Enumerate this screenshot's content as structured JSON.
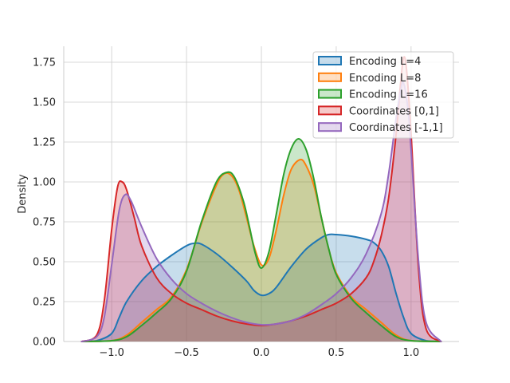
{
  "chart_data": {
    "type": "area",
    "title": "",
    "xlabel": "",
    "ylabel": "Density",
    "xlim": [
      -1.32,
      1.32
    ],
    "ylim": [
      0,
      1.85
    ],
    "grid": true,
    "legend_position": "top-right",
    "x_ticks": [
      -1.0,
      -0.5,
      0.0,
      0.5,
      1.0
    ],
    "x_tick_labels": [
      "−1.0",
      "−0.5",
      "0.0",
      "0.5",
      "1.0"
    ],
    "y_ticks": [
      0,
      0.25,
      0.5,
      0.75,
      1.0,
      1.25,
      1.5,
      1.75
    ],
    "y_tick_labels": [
      "0.00",
      "0.25",
      "0.50",
      "0.75",
      "1.00",
      "1.25",
      "1.50",
      "1.75"
    ],
    "series": [
      {
        "name": "Encoding L=4",
        "color": "#1f77b4",
        "points": [
          [
            -1.2,
            0.0
          ],
          [
            -1.1,
            0.005
          ],
          [
            -1.0,
            0.05
          ],
          [
            -0.95,
            0.15
          ],
          [
            -0.9,
            0.25
          ],
          [
            -0.8,
            0.38
          ],
          [
            -0.7,
            0.47
          ],
          [
            -0.6,
            0.54
          ],
          [
            -0.5,
            0.6
          ],
          [
            -0.45,
            0.615
          ],
          [
            -0.4,
            0.61
          ],
          [
            -0.3,
            0.55
          ],
          [
            -0.2,
            0.47
          ],
          [
            -0.1,
            0.38
          ],
          [
            -0.05,
            0.32
          ],
          [
            0.0,
            0.29
          ],
          [
            0.05,
            0.3
          ],
          [
            0.1,
            0.34
          ],
          [
            0.2,
            0.47
          ],
          [
            0.3,
            0.58
          ],
          [
            0.4,
            0.65
          ],
          [
            0.45,
            0.67
          ],
          [
            0.5,
            0.67
          ],
          [
            0.6,
            0.66
          ],
          [
            0.7,
            0.64
          ],
          [
            0.75,
            0.62
          ],
          [
            0.8,
            0.57
          ],
          [
            0.85,
            0.47
          ],
          [
            0.9,
            0.3
          ],
          [
            0.95,
            0.15
          ],
          [
            1.0,
            0.05
          ],
          [
            1.1,
            0.005
          ],
          [
            1.2,
            0.0
          ]
        ]
      },
      {
        "name": "Encoding L=8",
        "color": "#ff7f0e",
        "points": [
          [
            -1.2,
            0.0
          ],
          [
            -1.0,
            0.005
          ],
          [
            -0.9,
            0.04
          ],
          [
            -0.8,
            0.12
          ],
          [
            -0.7,
            0.2
          ],
          [
            -0.6,
            0.28
          ],
          [
            -0.5,
            0.45
          ],
          [
            -0.4,
            0.74
          ],
          [
            -0.3,
            0.98
          ],
          [
            -0.25,
            1.05
          ],
          [
            -0.2,
            1.04
          ],
          [
            -0.15,
            0.95
          ],
          [
            -0.1,
            0.78
          ],
          [
            -0.05,
            0.6
          ],
          [
            0.0,
            0.48
          ],
          [
            0.05,
            0.52
          ],
          [
            0.1,
            0.7
          ],
          [
            0.15,
            0.92
          ],
          [
            0.2,
            1.08
          ],
          [
            0.26,
            1.14
          ],
          [
            0.3,
            1.1
          ],
          [
            0.35,
            0.98
          ],
          [
            0.4,
            0.78
          ],
          [
            0.45,
            0.58
          ],
          [
            0.5,
            0.43
          ],
          [
            0.6,
            0.28
          ],
          [
            0.7,
            0.2
          ],
          [
            0.8,
            0.12
          ],
          [
            0.9,
            0.04
          ],
          [
            1.0,
            0.005
          ],
          [
            1.2,
            0.0
          ]
        ]
      },
      {
        "name": "Encoding L=16",
        "color": "#2ca02c",
        "points": [
          [
            -1.2,
            0.0
          ],
          [
            -1.0,
            0.005
          ],
          [
            -0.9,
            0.03
          ],
          [
            -0.8,
            0.1
          ],
          [
            -0.7,
            0.18
          ],
          [
            -0.6,
            0.27
          ],
          [
            -0.5,
            0.44
          ],
          [
            -0.4,
            0.75
          ],
          [
            -0.3,
            1.0
          ],
          [
            -0.23,
            1.06
          ],
          [
            -0.18,
            1.03
          ],
          [
            -0.12,
            0.88
          ],
          [
            -0.08,
            0.72
          ],
          [
            -0.04,
            0.55
          ],
          [
            0.0,
            0.46
          ],
          [
            0.05,
            0.56
          ],
          [
            0.1,
            0.8
          ],
          [
            0.15,
            1.05
          ],
          [
            0.2,
            1.21
          ],
          [
            0.25,
            1.27
          ],
          [
            0.3,
            1.2
          ],
          [
            0.35,
            1.02
          ],
          [
            0.4,
            0.78
          ],
          [
            0.45,
            0.58
          ],
          [
            0.5,
            0.42
          ],
          [
            0.6,
            0.27
          ],
          [
            0.7,
            0.18
          ],
          [
            0.8,
            0.1
          ],
          [
            0.9,
            0.03
          ],
          [
            1.0,
            0.005
          ],
          [
            1.2,
            0.0
          ]
        ]
      },
      {
        "name": "Coordinates [0,1]",
        "color": "#d62728",
        "points": [
          [
            -1.2,
            0.0
          ],
          [
            -1.1,
            0.04
          ],
          [
            -1.05,
            0.25
          ],
          [
            -1.0,
            0.7
          ],
          [
            -0.96,
            0.97
          ],
          [
            -0.93,
            1.0
          ],
          [
            -0.9,
            0.95
          ],
          [
            -0.85,
            0.78
          ],
          [
            -0.8,
            0.6
          ],
          [
            -0.7,
            0.4
          ],
          [
            -0.6,
            0.3
          ],
          [
            -0.5,
            0.24
          ],
          [
            -0.4,
            0.2
          ],
          [
            -0.3,
            0.16
          ],
          [
            -0.2,
            0.13
          ],
          [
            -0.1,
            0.11
          ],
          [
            0.0,
            0.1
          ],
          [
            0.1,
            0.11
          ],
          [
            0.2,
            0.13
          ],
          [
            0.3,
            0.16
          ],
          [
            0.4,
            0.2
          ],
          [
            0.5,
            0.24
          ],
          [
            0.6,
            0.3
          ],
          [
            0.7,
            0.4
          ],
          [
            0.75,
            0.5
          ],
          [
            0.8,
            0.66
          ],
          [
            0.85,
            0.9
          ],
          [
            0.9,
            1.3
          ],
          [
            0.93,
            1.62
          ],
          [
            0.95,
            1.78
          ],
          [
            0.97,
            1.7
          ],
          [
            1.0,
            1.3
          ],
          [
            1.05,
            0.45
          ],
          [
            1.1,
            0.08
          ],
          [
            1.2,
            0.0
          ]
        ]
      },
      {
        "name": "Coordinates [-1,1]",
        "color": "#9467bd",
        "points": [
          [
            -1.2,
            0.0
          ],
          [
            -1.1,
            0.03
          ],
          [
            -1.05,
            0.15
          ],
          [
            -1.0,
            0.48
          ],
          [
            -0.95,
            0.82
          ],
          [
            -0.91,
            0.92
          ],
          [
            -0.87,
            0.88
          ],
          [
            -0.8,
            0.72
          ],
          [
            -0.7,
            0.52
          ],
          [
            -0.6,
            0.39
          ],
          [
            -0.5,
            0.3
          ],
          [
            -0.4,
            0.24
          ],
          [
            -0.3,
            0.19
          ],
          [
            -0.2,
            0.15
          ],
          [
            -0.1,
            0.12
          ],
          [
            0.0,
            0.105
          ],
          [
            0.1,
            0.11
          ],
          [
            0.2,
            0.13
          ],
          [
            0.3,
            0.17
          ],
          [
            0.4,
            0.23
          ],
          [
            0.5,
            0.3
          ],
          [
            0.6,
            0.4
          ],
          [
            0.7,
            0.55
          ],
          [
            0.8,
            0.8
          ],
          [
            0.85,
            1.05
          ],
          [
            0.9,
            1.4
          ],
          [
            0.93,
            1.57
          ],
          [
            0.95,
            1.62
          ],
          [
            0.98,
            1.45
          ],
          [
            1.0,
            1.2
          ],
          [
            1.05,
            0.5
          ],
          [
            1.1,
            0.12
          ],
          [
            1.2,
            0.0
          ]
        ]
      }
    ]
  }
}
